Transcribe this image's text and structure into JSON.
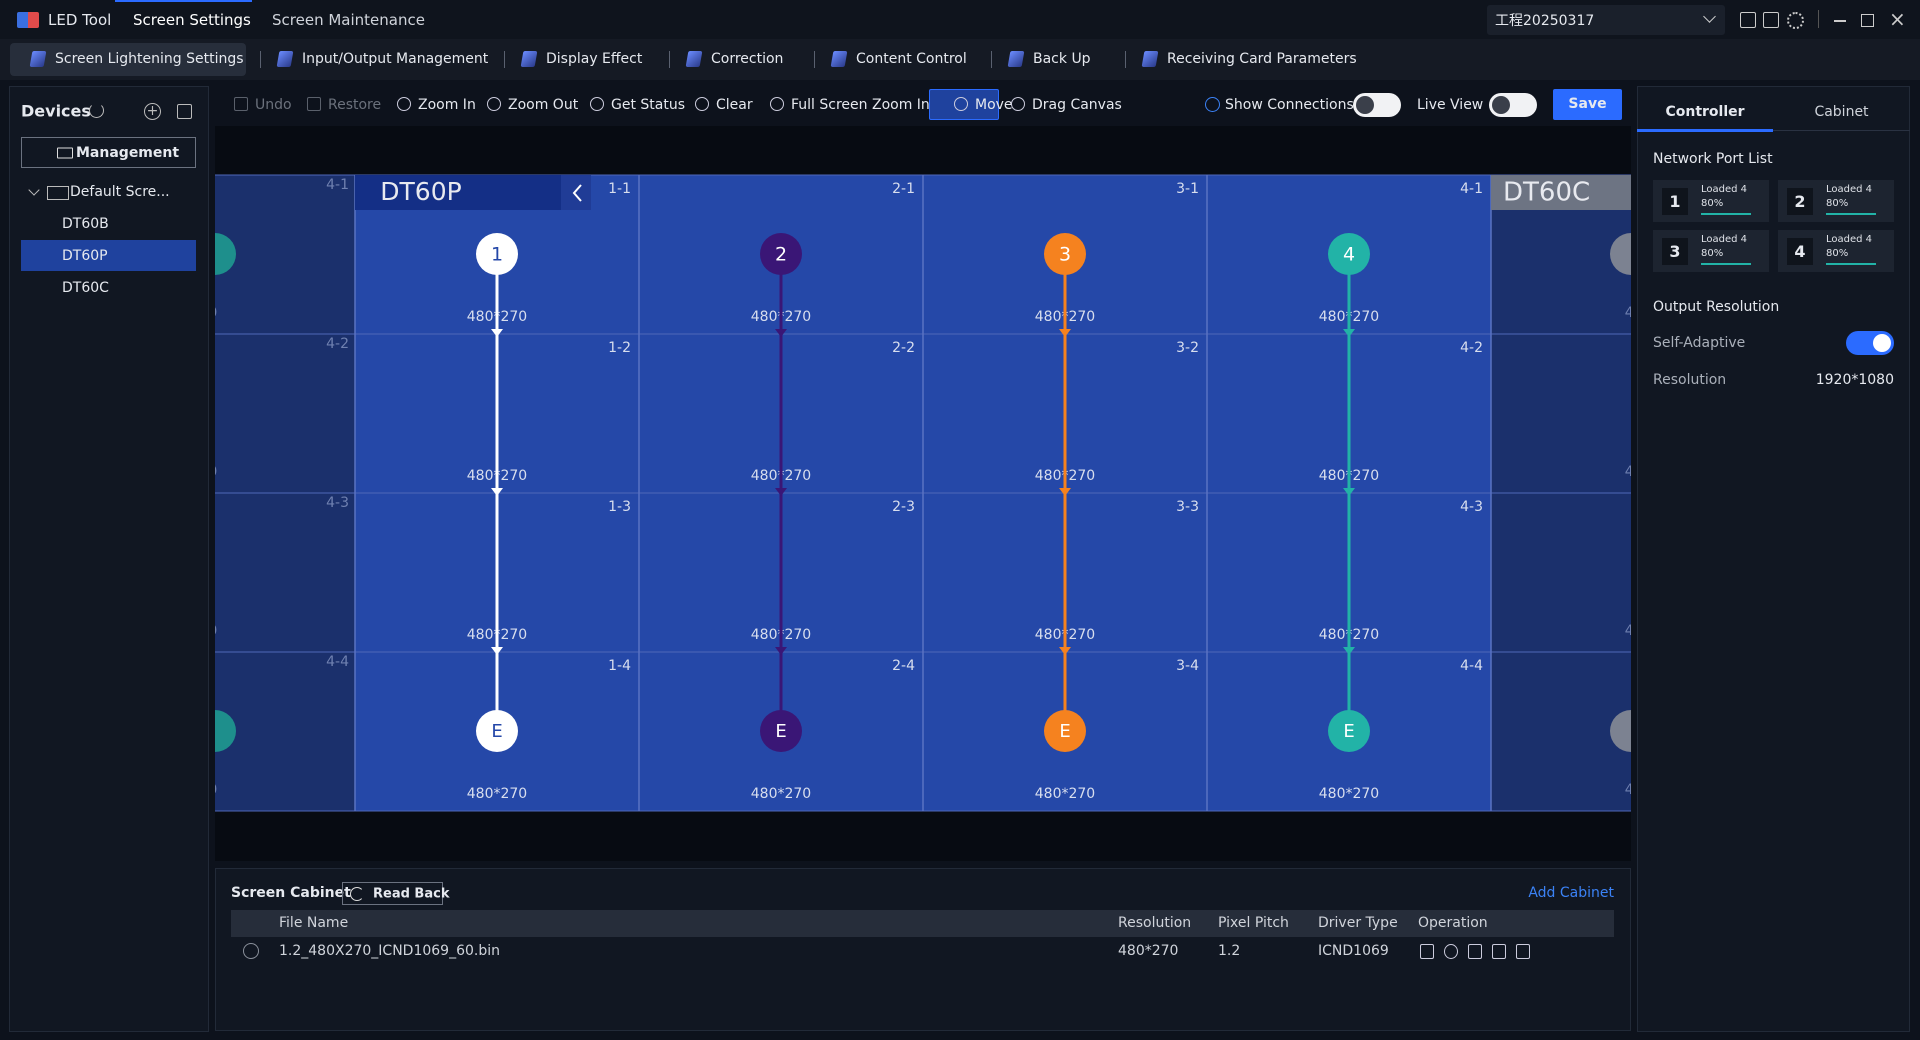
{
  "app": {
    "title": "LED Tool",
    "tabs": [
      "Screen Settings",
      "Screen Maintenance"
    ],
    "project": "工程20250317"
  },
  "subtabs": [
    "Screen Lightening Settings",
    "Input/Output Management",
    "Display Effect",
    "Correction",
    "Content Control",
    "Back Up",
    "Receiving Card Parameters"
  ],
  "sidebar": {
    "title": "Devices",
    "button": "Management",
    "root": "Default Scre...",
    "items": [
      "DT60B",
      "DT60P",
      "DT60C"
    ],
    "selected": 1
  },
  "toolbar": {
    "items": [
      "Undo",
      "Restore",
      "Zoom In",
      "Zoom Out",
      "Get Status",
      "Clear",
      "Full Screen Zoom In",
      "Move",
      "Drag Canvas"
    ],
    "active": 7,
    "disabled": [
      0,
      1
    ],
    "toggles": [
      "Show Connections",
      "Live View"
    ],
    "save": "Save"
  },
  "canvas": {
    "screen_name": "DT60P",
    "neighbor_name": "DT60C",
    "left_labels": [
      "4-1",
      "4-2",
      "4-3",
      "4-4"
    ],
    "cabinet_labels": [
      [
        "1-1",
        "1-2",
        "1-3",
        "1-4"
      ],
      [
        "2-1",
        "2-2",
        "2-3",
        "2-4"
      ],
      [
        "3-1",
        "3-2",
        "3-3",
        "3-4"
      ],
      [
        "4-1",
        "4-2",
        "4-3",
        "4-4"
      ]
    ],
    "cabinet_resolution": "480*270",
    "ports": [
      {
        "label": "1",
        "color": "#ffffff",
        "text_color": "#2447a8"
      },
      {
        "label": "2",
        "color": "#3a1676",
        "text_color": "#ffffff"
      },
      {
        "label": "3",
        "color": "#f5821f",
        "text_color": "#ffffff"
      },
      {
        "label": "4",
        "color": "#22b3a7",
        "text_color": "#ffffff"
      }
    ],
    "end_label": "E"
  },
  "cabinet_panel": {
    "title": "Screen Cabinet",
    "read_back": "Read Back",
    "add": "Add Cabinet",
    "columns": [
      "File Name",
      "Resolution",
      "Pixel Pitch",
      "Driver Type",
      "Operation"
    ],
    "rows": [
      [
        "1.2_480X270_ICND1069_60.bin",
        "480*270",
        "1.2",
        "ICND1069"
      ]
    ]
  },
  "right_panel": {
    "tabs": [
      "Controller",
      "Cabinet"
    ],
    "port_list_title": "Network Port List",
    "ports": [
      {
        "number": "1",
        "status": "Loaded 4",
        "percent": "80%"
      },
      {
        "number": "2",
        "status": "Loaded 4",
        "percent": "80%"
      },
      {
        "number": "3",
        "status": "Loaded 4",
        "percent": "80%"
      },
      {
        "number": "4",
        "status": "Loaded 4",
        "percent": "80%"
      }
    ],
    "output_title": "Output Resolution",
    "self_adaptive": "Self-Adaptive",
    "resolution_label": "Resolution",
    "resolution_value": "1920*1080"
  }
}
